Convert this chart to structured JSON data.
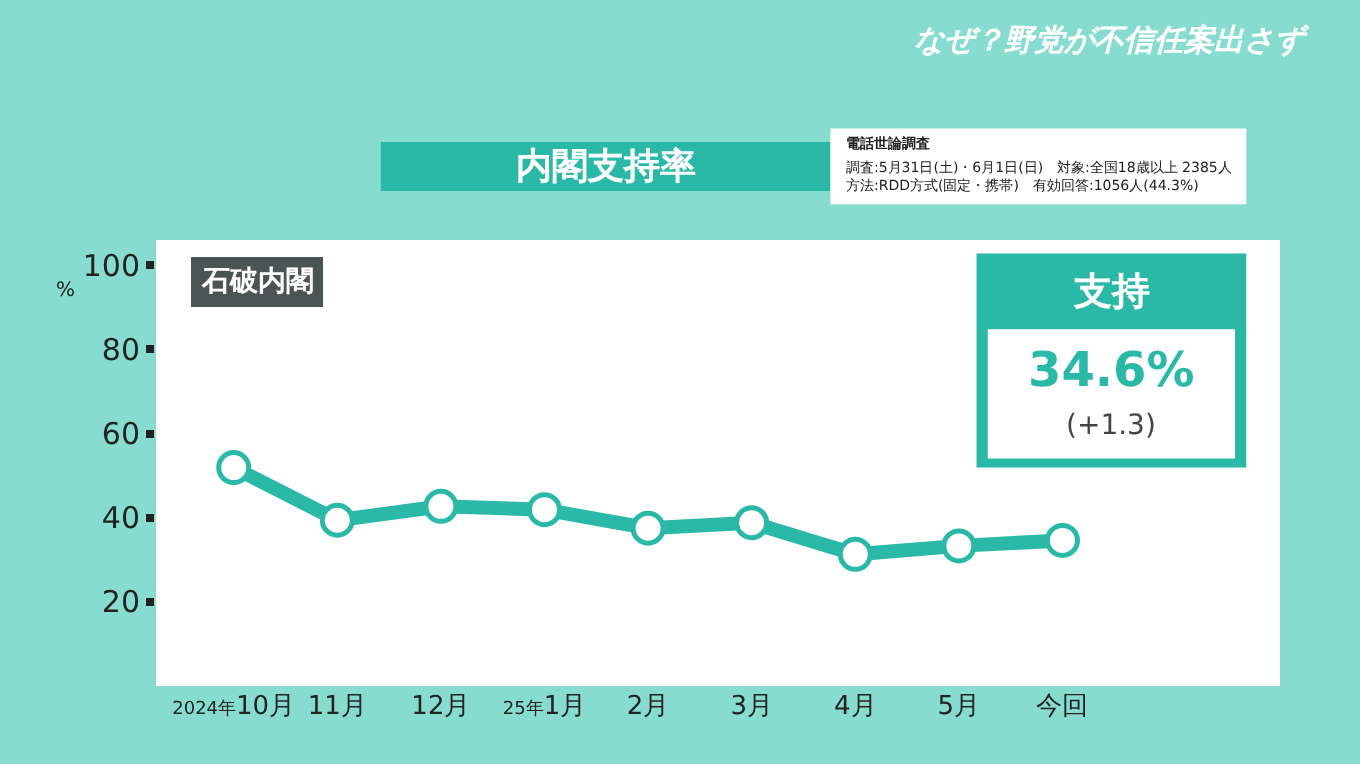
{
  "chart_data": {
    "type": "line",
    "title": "内閣支持率",
    "subtitle": "なぜ？野党が不信任案出さず",
    "ylabel": "%",
    "categories": [
      "2024年10月",
      "11月",
      "12月",
      "25年1月",
      "2月",
      "3月",
      "4月",
      "5月",
      "今回"
    ],
    "series": [
      {
        "color": "#2bb9a7",
        "values": [
          51.9,
          39.4,
          42.7,
          41.9,
          37.5,
          38.8,
          31.3,
          33.3,
          34.6
        ]
      }
    ],
    "ylim": [
      0,
      106
    ],
    "yticks": [
      20,
      40,
      60,
      80,
      100
    ],
    "marker": "circle",
    "line_style": "solid",
    "annotations": [
      "電話世論調査",
      "調査:5月31日(土)・6月1日(日)　対象:全国18歳以上 2385人",
      "方法:RDD方式(固定・携帯)　有効回答:1056人(44.3%)",
      "石破内閣",
      "支持",
      "34.6%",
      "(+1.3)"
    ]
  }
}
